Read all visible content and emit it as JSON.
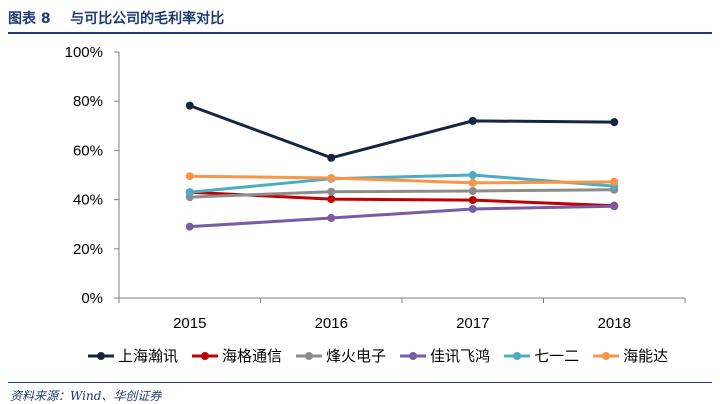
{
  "header": {
    "figure_title": "图表 8    与可比公司的毛利率对比"
  },
  "footer": {
    "source": "资料来源：Wind、华创证券"
  },
  "chart_data": {
    "type": "line",
    "title": "",
    "xlabel": "",
    "ylabel": "",
    "categories": [
      "2015",
      "2016",
      "2017",
      "2018"
    ],
    "ylim": [
      0,
      100
    ],
    "y_ticks": [
      "0%",
      "20%",
      "40%",
      "60%",
      "80%",
      "100%"
    ],
    "y_unit": "%",
    "grid": false,
    "legend_position": "bottom",
    "series": [
      {
        "name": "上海瀚讯",
        "color": "#17253f",
        "values": [
          78.2,
          57.0,
          72.0,
          71.5
        ]
      },
      {
        "name": "海格通信",
        "color": "#c00000",
        "values": [
          43.0,
          40.2,
          39.8,
          37.5
        ]
      },
      {
        "name": "烽火电子",
        "color": "#8c8c8c",
        "values": [
          41.0,
          43.2,
          43.5,
          44.0
        ]
      },
      {
        "name": "佳讯飞鸿",
        "color": "#7a5ba6",
        "values": [
          29.0,
          32.5,
          36.2,
          37.3
        ]
      },
      {
        "name": "七一二",
        "color": "#4bacc6",
        "values": [
          43.0,
          48.5,
          50.0,
          45.5
        ]
      },
      {
        "name": "海能达",
        "color": "#f79646",
        "values": [
          49.5,
          48.8,
          46.8,
          47.2
        ]
      }
    ]
  }
}
